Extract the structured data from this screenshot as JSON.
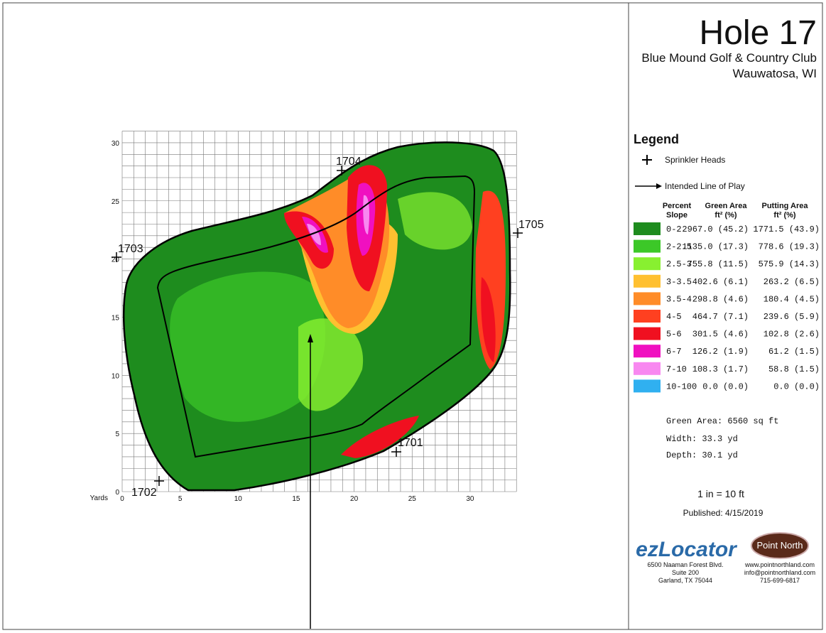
{
  "header": {
    "title": "Hole 17",
    "club": "Blue Mound Golf & Country Club",
    "location": "Wauwatosa, WI"
  },
  "map": {
    "axis_label": "Yards",
    "xlim": [
      0,
      34
    ],
    "ylim": [
      0,
      31
    ],
    "xticks": [
      0,
      5,
      10,
      15,
      20,
      25,
      30
    ],
    "yticks": [
      0,
      5,
      10,
      15,
      20,
      25,
      30
    ],
    "sprinklers": [
      "1701",
      "1702",
      "1703",
      "1704",
      "1705"
    ]
  },
  "legend": {
    "title": "Legend",
    "sprinkler_label": "Sprinkler Heads",
    "line_label": "Intended Line of Play",
    "columns": [
      "Percent Slope",
      "Green Area ft² (%)",
      "Putting Area ft² (%)"
    ],
    "rows": [
      {
        "slope": "0-2",
        "color": "#1e8c1e",
        "green": "2967.0 (45.2)",
        "putting": "1771.5 (43.9)"
      },
      {
        "slope": "2-2.5",
        "color": "#3cc828",
        "green": "1135.0 (17.3)",
        "putting": "778.6 (19.3)"
      },
      {
        "slope": "2.5-3",
        "color": "#88f030",
        "green": "755.8 (11.5)",
        "putting": "575.9 (14.3)"
      },
      {
        "slope": "3-3.5",
        "color": "#ffc030",
        "green": "402.6 (6.1)",
        "putting": "263.2 (6.5)"
      },
      {
        "slope": "3.5-4",
        "color": "#ff8c28",
        "green": "298.8 (4.6)",
        "putting": "180.4 (4.5)"
      },
      {
        "slope": "4-5",
        "color": "#ff4020",
        "green": "464.7 (7.1)",
        "putting": "239.6 (5.9)"
      },
      {
        "slope": "5-6",
        "color": "#f01020",
        "green": "301.5 (4.6)",
        "putting": "102.8 (2.6)"
      },
      {
        "slope": "6-7",
        "color": "#f010c0",
        "green": "126.2 (1.9)",
        "putting": "61.2 (1.5)"
      },
      {
        "slope": "7-10",
        "color": "#f888f0",
        "green": "108.3 (1.7)",
        "putting": "58.8 (1.5)"
      },
      {
        "slope": "10-100",
        "color": "#30b0f0",
        "green": "0.0 (0.0)",
        "putting": "0.0 (0.0)"
      }
    ]
  },
  "stats": [
    "Green Area: 6560 sq ft",
    "Width: 33.3 yd",
    "Depth: 30.1 yd"
  ],
  "scale": "1 in = 10 ft",
  "published": "Published: 4/15/2019",
  "footer": {
    "brand1": "ezLocator",
    "address": [
      "6500 Naaman Forest Blvd.",
      "Suite 200",
      "Garland, TX  75044"
    ],
    "brand2": "Point North",
    "contact": [
      "www.pointnorthland.com",
      "info@pointnorthland.com",
      "715-699-6817"
    ]
  }
}
